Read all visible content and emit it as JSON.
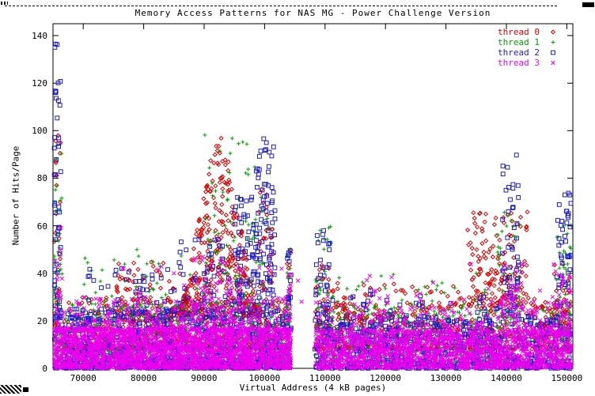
{
  "window": {
    "kind": "gnuplot-x11-scatter-plot"
  },
  "chart_data": {
    "type": "scatter",
    "title": "Memory Access Patterns for NAS MG - Power Challenge Version",
    "xlabel": "Virtual Address (4 kB pages)",
    "ylabel": "Number of Hits/Page",
    "xlim": [
      65000,
      151000
    ],
    "ylim": [
      0,
      145
    ],
    "xticks": [
      70000,
      80000,
      90000,
      100000,
      110000,
      120000,
      130000,
      140000,
      150000
    ],
    "yticks": [
      0,
      20,
      40,
      60,
      80,
      100,
      120,
      140
    ],
    "grid": false,
    "legend_position": "top-right-inside",
    "distribution_note": "Dense scatter of ~10k page-hit samples per thread. Points are summarized as clusters: x uniform in [x0,x1]; y = y0+(y1-y0)*r^bias (bias>1 concentrates near y0); shape 'triangle' tapers the local y-maximum toward cluster edges (red hump peaking ~107 hits near page 93000). Gap with no samples between pages ~104200-108300. Tall blue spikes to ~137 at left edge, blue column to ~97 near 100000, blue to ~90 near 140500; red hump 85000-99000 peaking ~107; dense magenta base band 0-20 across the full range.",
    "series": [
      {
        "name": "thread 0",
        "color": "#dc0000",
        "marker": "diamond-open",
        "clusters": [
          {
            "x0": 65200,
            "x1": 104200,
            "y0": 8,
            "y1": 30,
            "n": 620,
            "bias": 2.2
          },
          {
            "x0": 108300,
            "x1": 150800,
            "y0": 8,
            "y1": 28,
            "n": 500,
            "bias": 2.2
          },
          {
            "x0": 75000,
            "x1": 86000,
            "y0": 20,
            "y1": 45,
            "n": 90,
            "bias": 1.8
          },
          {
            "x0": 86000,
            "x1": 99000,
            "y0": 22,
            "y1": 107,
            "n": 380,
            "bias": 1.2,
            "shape": "triangle"
          },
          {
            "x0": 65200,
            "x1": 66300,
            "y0": 30,
            "y1": 100,
            "n": 22,
            "bias": 1.2
          },
          {
            "x0": 99000,
            "x1": 101500,
            "y0": 28,
            "y1": 80,
            "n": 35,
            "bias": 1.3
          },
          {
            "x0": 103700,
            "x1": 104400,
            "y0": 18,
            "y1": 50,
            "n": 12,
            "bias": 1.2
          },
          {
            "x0": 108400,
            "x1": 110800,
            "y0": 18,
            "y1": 46,
            "n": 22,
            "bias": 1.3
          },
          {
            "x0": 110000,
            "x1": 133500,
            "y0": 16,
            "y1": 36,
            "n": 110,
            "bias": 1.8
          },
          {
            "x0": 133500,
            "x1": 143500,
            "y0": 26,
            "y1": 66,
            "n": 160,
            "bias": 1.5
          },
          {
            "x0": 143500,
            "x1": 147800,
            "y0": 14,
            "y1": 30,
            "n": 40,
            "bias": 1.8
          },
          {
            "x0": 147800,
            "x1": 150700,
            "y0": 18,
            "y1": 46,
            "n": 30,
            "bias": 1.5
          }
        ]
      },
      {
        "name": "thread 1",
        "color": "#00a000",
        "marker": "plus",
        "clusters": [
          {
            "x0": 65200,
            "x1": 104200,
            "y0": 2,
            "y1": 28,
            "n": 700,
            "bias": 2.0
          },
          {
            "x0": 108300,
            "x1": 150800,
            "y0": 2,
            "y1": 26,
            "n": 540,
            "bias": 2.0
          },
          {
            "x0": 70000,
            "x1": 90000,
            "y0": 20,
            "y1": 50,
            "n": 70,
            "bias": 1.8
          },
          {
            "x0": 65200,
            "x1": 66500,
            "y0": 28,
            "y1": 94,
            "n": 30,
            "bias": 1.2
          },
          {
            "x0": 90000,
            "x1": 100800,
            "y0": 26,
            "y1": 100,
            "n": 100,
            "bias": 1.5
          },
          {
            "x0": 103700,
            "x1": 104400,
            "y0": 16,
            "y1": 56,
            "n": 18,
            "bias": 1.2
          },
          {
            "x0": 108400,
            "x1": 111200,
            "y0": 16,
            "y1": 62,
            "n": 30,
            "bias": 1.3
          },
          {
            "x0": 110000,
            "x1": 138000,
            "y0": 14,
            "y1": 40,
            "n": 90,
            "bias": 1.8
          },
          {
            "x0": 138500,
            "x1": 142500,
            "y0": 22,
            "y1": 66,
            "n": 45,
            "bias": 1.4
          },
          {
            "x0": 148300,
            "x1": 150700,
            "y0": 16,
            "y1": 62,
            "n": 40,
            "bias": 1.4
          }
        ]
      },
      {
        "name": "thread 2",
        "color": "#1c1ccc",
        "marker": "square-open",
        "clusters": [
          {
            "x0": 65200,
            "x1": 104200,
            "y0": 0,
            "y1": 25,
            "n": 820,
            "bias": 1.9
          },
          {
            "x0": 108300,
            "x1": 150800,
            "y0": 0,
            "y1": 22,
            "n": 630,
            "bias": 1.9
          },
          {
            "x0": 70000,
            "x1": 86000,
            "y0": 20,
            "y1": 46,
            "n": 60,
            "bias": 1.8
          },
          {
            "x0": 65200,
            "x1": 66300,
            "y0": 20,
            "y1": 137,
            "n": 48,
            "bias": 1.3
          },
          {
            "x0": 86000,
            "x1": 95000,
            "y0": 20,
            "y1": 55,
            "n": 60,
            "bias": 1.6
          },
          {
            "x0": 95000,
            "x1": 98200,
            "y0": 22,
            "y1": 72,
            "n": 60,
            "bias": 1.5
          },
          {
            "x0": 98200,
            "x1": 101800,
            "y0": 24,
            "y1": 97,
            "n": 95,
            "bias": 1.3
          },
          {
            "x0": 103700,
            "x1": 104400,
            "y0": 14,
            "y1": 52,
            "n": 18,
            "bias": 1.2
          },
          {
            "x0": 108400,
            "x1": 110800,
            "y0": 14,
            "y1": 58,
            "n": 35,
            "bias": 1.3
          },
          {
            "x0": 110000,
            "x1": 139000,
            "y0": 12,
            "y1": 34,
            "n": 110,
            "bias": 1.8
          },
          {
            "x0": 139200,
            "x1": 142000,
            "y0": 22,
            "y1": 90,
            "n": 55,
            "bias": 1.4
          },
          {
            "x0": 148300,
            "x1": 150700,
            "y0": 14,
            "y1": 74,
            "n": 55,
            "bias": 1.4
          }
        ]
      },
      {
        "name": "thread 3",
        "color": "#ee00ee",
        "marker": "x",
        "clusters": [
          {
            "x0": 65200,
            "x1": 104200,
            "y0": 0,
            "y1": 17,
            "n": 2300,
            "bias": 1.3
          },
          {
            "x0": 108300,
            "x1": 150800,
            "y0": 0,
            "y1": 16,
            "n": 1700,
            "bias": 1.3
          },
          {
            "x0": 65200,
            "x1": 104200,
            "y0": 16,
            "y1": 30,
            "n": 320,
            "bias": 1.9
          },
          {
            "x0": 108300,
            "x1": 150800,
            "y0": 15,
            "y1": 28,
            "n": 230,
            "bias": 1.9
          },
          {
            "x0": 65200,
            "x1": 66500,
            "y0": 25,
            "y1": 60,
            "n": 12,
            "bias": 1.3
          },
          {
            "x0": 88000,
            "x1": 97000,
            "y0": 25,
            "y1": 47,
            "n": 45,
            "bias": 1.5
          },
          {
            "x0": 103900,
            "x1": 104400,
            "y0": 0,
            "y1": 40,
            "n": 40,
            "bias": 1.4
          },
          {
            "x0": 139000,
            "x1": 143000,
            "y0": 22,
            "y1": 46,
            "n": 35,
            "bias": 1.5
          },
          {
            "x0": 148300,
            "x1": 150700,
            "y0": 14,
            "y1": 40,
            "n": 30,
            "bias": 1.5
          },
          {
            "x0": 65200,
            "x1": 150800,
            "y0": 28,
            "y1": 44,
            "n": 50,
            "bias": 1.6
          }
        ]
      }
    ]
  }
}
